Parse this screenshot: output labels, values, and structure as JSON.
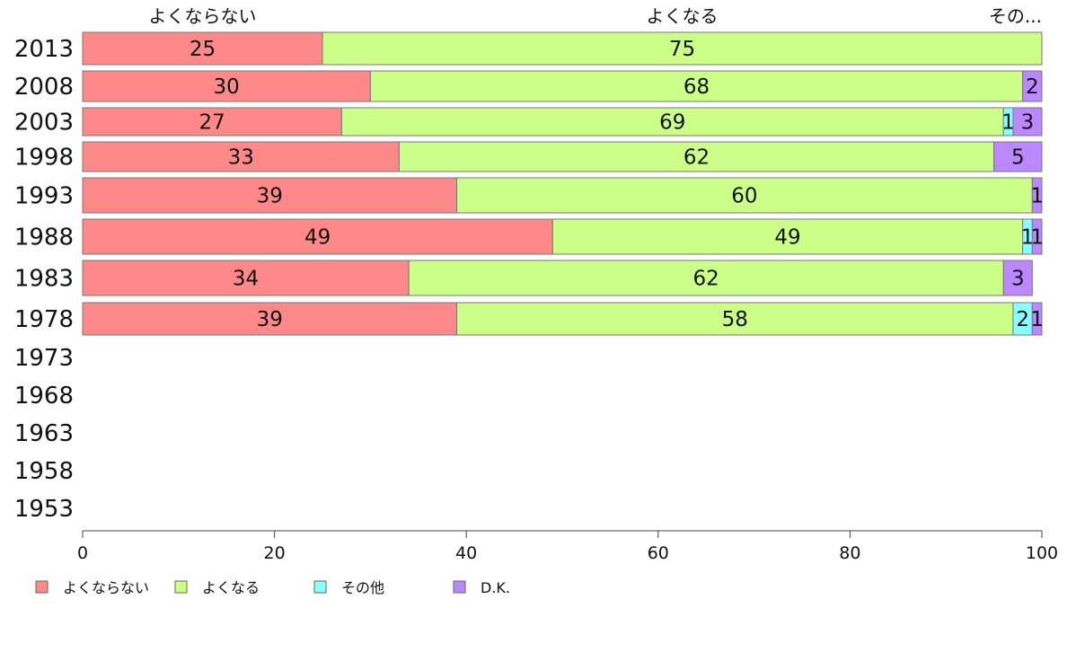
{
  "chart_data": {
    "type": "bar",
    "orientation": "horizontal",
    "stacked": true,
    "categories": [
      "2013",
      "2008",
      "2003",
      "1998",
      "1993",
      "1988",
      "1983",
      "1978",
      "1973",
      "1968",
      "1963",
      "1958",
      "1953"
    ],
    "series": [
      {
        "name": "よくならない",
        "color": "#ff8888",
        "values": [
          25,
          30,
          27,
          33,
          39,
          49,
          34,
          39,
          null,
          null,
          null,
          null,
          null
        ]
      },
      {
        "name": "よくなる",
        "color": "#ccff88",
        "values": [
          75,
          68,
          69,
          62,
          60,
          49,
          62,
          58,
          null,
          null,
          null,
          null,
          null
        ]
      },
      {
        "name": "その他",
        "color": "#88ffff",
        "values": [
          0,
          0,
          1,
          0,
          0,
          1,
          0,
          2,
          null,
          null,
          null,
          null,
          null
        ]
      },
      {
        "name": "D.K.",
        "color": "#bb88ff",
        "values": [
          0,
          2,
          3,
          5,
          1,
          1,
          3,
          1,
          null,
          null,
          null,
          null,
          null
        ]
      }
    ],
    "top_labels": [
      "よくならない",
      "よくなる",
      "その..."
    ],
    "xlim": [
      0,
      100
    ],
    "xticks": [
      0,
      20,
      40,
      60,
      80,
      100
    ],
    "legend_position": "bottom-left",
    "grid": false
  }
}
